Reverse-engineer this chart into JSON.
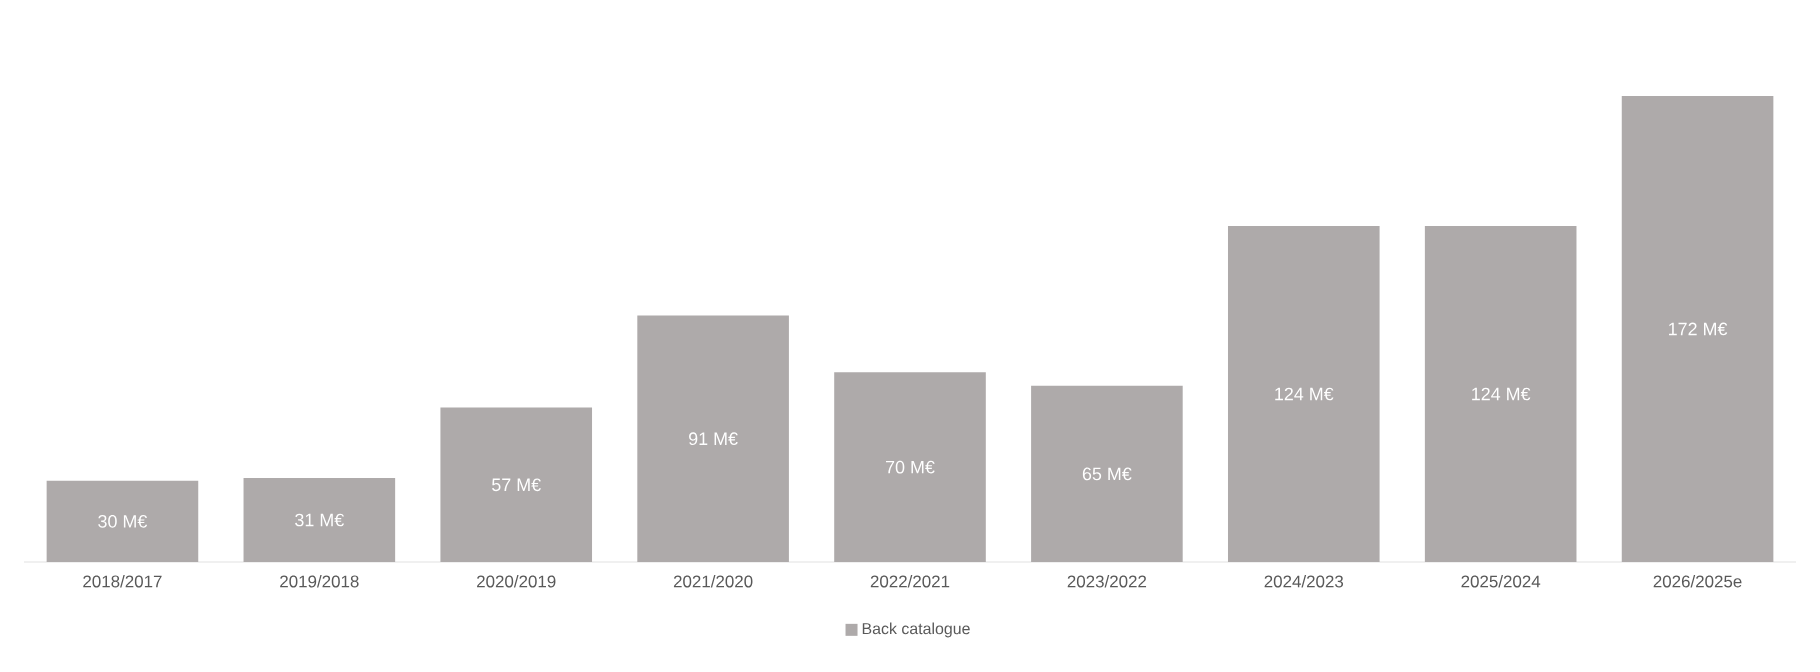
{
  "chart_data": {
    "type": "bar",
    "categories": [
      "2018/2017",
      "2019/2018",
      "2020/2019",
      "2021/2020",
      "2022/2021",
      "2023/2022",
      "2024/2023",
      "2025/2024",
      "2026/2025e"
    ],
    "series": [
      {
        "name": "Back catalogue",
        "color": "#aeaaaa",
        "values": [
          30,
          31,
          57,
          91,
          70,
          65,
          124,
          124,
          172
        ],
        "value_labels": [
          "30 M€",
          "31 M€",
          "57 M€",
          "91 M€",
          "70 M€",
          "65 M€",
          "124 M€",
          "124 M€",
          "172 M€"
        ]
      }
    ],
    "legend": "bottom"
  }
}
